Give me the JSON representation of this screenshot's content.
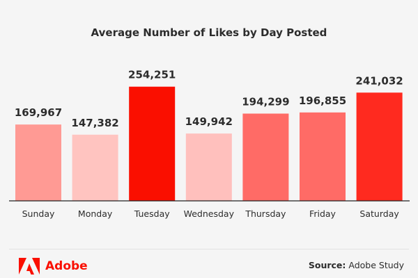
{
  "chart_data": {
    "type": "bar",
    "title": "Average Number of Likes by Day Posted",
    "categories": [
      "Sunday",
      "Monday",
      "Tuesday",
      "Wednesday",
      "Thursday",
      "Friday",
      "Saturday"
    ],
    "values": [
      169967,
      147382,
      254251,
      149942,
      194299,
      196855,
      241032
    ],
    "value_labels": [
      "169,967",
      "147,382",
      "254,251",
      "149,942",
      "194,299",
      "196,855",
      "241,032"
    ],
    "colors": [
      "#ff9a94",
      "#ffc4c0",
      "#fa0f00",
      "#ffc0bd",
      "#ff6b66",
      "#ff6b66",
      "#ff2a1f"
    ],
    "xlabel": "",
    "ylabel": "",
    "ylim": [
      0,
      260000
    ],
    "grid": false
  },
  "footer": {
    "brand": "Adobe",
    "brand_color": "#fa0f00",
    "source_label": "Source:",
    "source_value": "Adobe Study"
  }
}
